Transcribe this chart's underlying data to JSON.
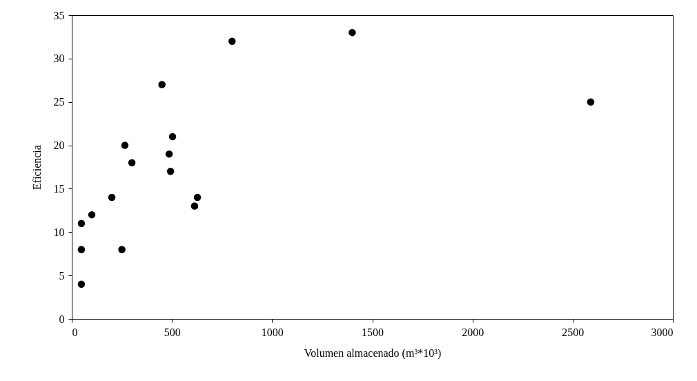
{
  "chart_data": {
    "type": "scatter",
    "xlabel": "Volumen almacenado (m³*10³)",
    "ylabel": "Eficiencia",
    "x": [
      48,
      48,
      48,
      100,
      200,
      250,
      265,
      300,
      450,
      486,
      493,
      503,
      613,
      627,
      800,
      1400,
      2590
    ],
    "series": [
      {
        "color": "#000000",
        "values": [
          4,
          8,
          11,
          12,
          14,
          8,
          20,
          18,
          27,
          19,
          17,
          21,
          13,
          14,
          32,
          33,
          25
        ]
      }
    ],
    "xlim": [
      0,
      3000
    ],
    "xticks": [
      0,
      500,
      1000,
      1500,
      2000,
      2500,
      3000
    ],
    "ylim": [
      0,
      35
    ],
    "yticks": [
      0,
      5,
      10,
      15,
      20,
      25,
      30,
      35
    ],
    "grid": false,
    "marker": "circle"
  }
}
